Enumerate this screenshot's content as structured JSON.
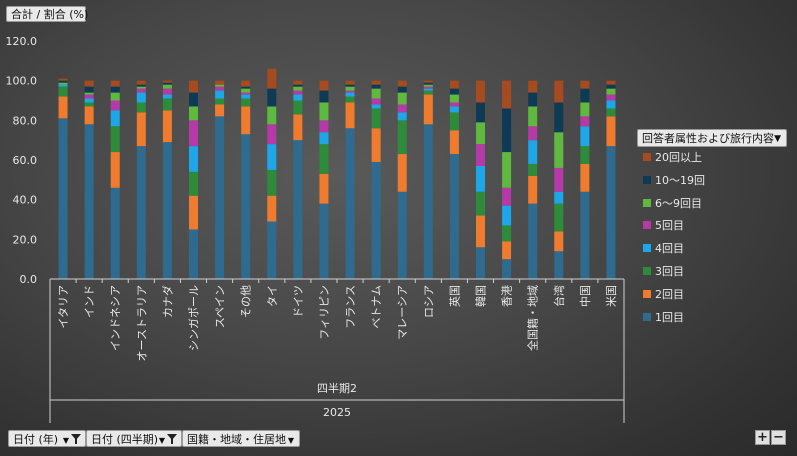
{
  "measure_label": "合計 / 割合 (%)",
  "legend_field": "回答者属性および旅行内容",
  "filters": {
    "year": "日付 (年)",
    "quarter": "日付 (四半期)",
    "axis_field": "国籍・地域・住居地"
  },
  "zoom": {
    "in": "+",
    "out": "−"
  },
  "chart_data": {
    "type": "bar",
    "stacked": true,
    "title": "",
    "ylim": [
      0,
      120
    ],
    "yticks": [
      "0.0",
      "20.0",
      "40.0",
      "60.0",
      "80.0",
      "100.0",
      "120.0"
    ],
    "grid": false,
    "legend_position": "right",
    "group_labels": {
      "quarter": "四半期2",
      "year": "2025"
    },
    "categories": [
      "イタリア",
      "インド",
      "インドネシア",
      "オーストラリア",
      "カナダ",
      "シンガポール",
      "スペイン",
      "その他",
      "タイ",
      "ドイツ",
      "フィリピン",
      "フランス",
      "ベトナム",
      "マレーシア",
      "ロシア",
      "英国",
      "韓国",
      "香港",
      "全国籍・地域",
      "台湾",
      "中国",
      "米国"
    ],
    "series": [
      {
        "name": "1回目",
        "color": "#2e6b8e",
        "values": [
          81,
          78,
          46,
          67,
          69,
          25,
          82,
          73,
          29,
          70,
          38,
          76,
          59,
          44,
          78,
          63,
          16,
          10,
          38,
          14,
          44,
          67
        ]
      },
      {
        "name": "2回目",
        "color": "#ef7c2e",
        "values": [
          11,
          9,
          18,
          17,
          16,
          17,
          6,
          14,
          13,
          13,
          15,
          13,
          17,
          19,
          15,
          12,
          16,
          9,
          14,
          10,
          14,
          15
        ]
      },
      {
        "name": "3回目",
        "color": "#2e8b3a",
        "values": [
          5,
          2,
          13,
          5,
          6,
          12,
          3,
          4,
          13,
          7,
          15,
          3,
          10,
          17,
          2,
          9,
          12,
          8,
          6,
          14,
          9,
          4
        ]
      },
      {
        "name": "4回目",
        "color": "#1da7e8",
        "values": [
          1,
          2,
          8,
          5,
          2,
          13,
          4,
          2,
          13,
          3,
          6,
          2,
          2,
          4,
          1,
          3,
          13,
          10,
          12,
          6,
          10,
          4
        ]
      },
      {
        "name": "5回目",
        "color": "#b53aa8",
        "values": [
          0,
          2,
          5,
          2,
          3,
          13,
          2,
          1,
          10,
          2,
          6,
          1,
          3,
          4,
          1,
          2,
          11,
          9,
          7,
          12,
          5,
          3
        ]
      },
      {
        "name": "6〜9回目",
        "color": "#5fb93e",
        "values": [
          1,
          1,
          4,
          1,
          2,
          7,
          1,
          2,
          9,
          2,
          9,
          2,
          5,
          6,
          1,
          4,
          11,
          18,
          10,
          18,
          7,
          3
        ]
      },
      {
        "name": "10〜19回",
        "color": "#0f3a55",
        "values": [
          1,
          3,
          3,
          1,
          1,
          7,
          0,
          1,
          9,
          1,
          6,
          1,
          2,
          3,
          1,
          3,
          10,
          22,
          7,
          15,
          7,
          2
        ]
      },
      {
        "name": "20回以上",
        "color": "#a64a1f",
        "values": [
          1,
          3,
          3,
          2,
          1,
          6,
          2,
          3,
          10,
          2,
          5,
          2,
          2,
          3,
          1,
          4,
          11,
          14,
          6,
          11,
          4,
          2
        ]
      }
    ]
  }
}
